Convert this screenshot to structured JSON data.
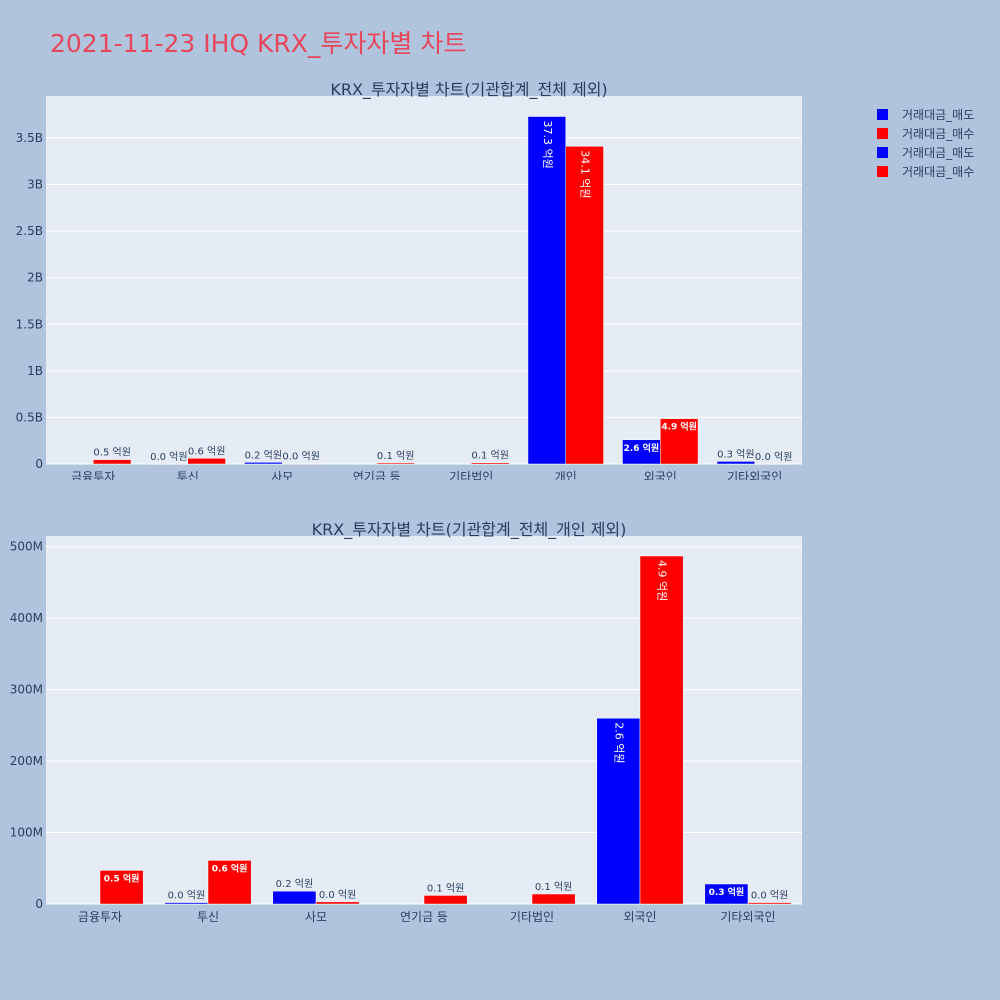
{
  "title": "2021-11-23 IHQ KRX_투자자별 차트",
  "legend": [
    {
      "label": "거래대금_매도",
      "color": "#0000ff"
    },
    {
      "label": "거래대금_매수",
      "color": "#ff0000"
    },
    {
      "label": "거래대금_매도",
      "color": "#0000ff"
    },
    {
      "label": "거래대금_매수",
      "color": "#ff0000"
    }
  ],
  "chart_data": [
    {
      "type": "bar",
      "title": "KRX_투자자별 차트(기관합계_전체 제외)",
      "categories": [
        "금융투자",
        "투신",
        "사모",
        "연기금 등",
        "기타법인",
        "개인",
        "외국인",
        "기타외국인"
      ],
      "ylim": [
        0,
        3950000000
      ],
      "yticks": [
        0,
        500000000,
        1000000000,
        1500000000,
        2000000000,
        2500000000,
        3000000000,
        3500000000
      ],
      "ytick_labels": [
        "0",
        "0.5B",
        "1B",
        "1.5B",
        "2B",
        "2.5B",
        "3B",
        "3.5B"
      ],
      "grid": true,
      "series": [
        {
          "name": "거래대금_매도",
          "color": "#0000ff",
          "values": [
            null,
            2000000,
            18000000,
            null,
            null,
            3730000000,
            260000000,
            28000000
          ],
          "labels": [
            "",
            "0.0 억원",
            "0.2 억원",
            "",
            "",
            "37.3 억원",
            "2.6 억원",
            "0.3 억원"
          ]
        },
        {
          "name": "거래대금_매수",
          "color": "#ff0000",
          "values": [
            47000000,
            61000000,
            3000000,
            12000000,
            14000000,
            3410000000,
            487000000,
            2000000
          ],
          "labels": [
            "0.5 억원",
            "0.6 억원",
            "0.0 억원",
            "0.1 억원",
            "0.1 억원",
            "34.1 억원",
            "4.9 억원",
            "0.0 억원"
          ]
        }
      ]
    },
    {
      "type": "bar",
      "title": "KRX_투자자별 차트(기관합계_전체_개인 제외)",
      "categories": [
        "금융투자",
        "투신",
        "사모",
        "연기금 등",
        "기타법인",
        "외국인",
        "기타외국인"
      ],
      "ylim": [
        0,
        515000000
      ],
      "yticks": [
        0,
        100000000,
        200000000,
        300000000,
        400000000,
        500000000
      ],
      "ytick_labels": [
        "0",
        "100M",
        "200M",
        "300M",
        "400M",
        "500M"
      ],
      "grid": true,
      "series": [
        {
          "name": "거래대금_매도",
          "color": "#0000ff",
          "values": [
            null,
            2000000,
            18000000,
            null,
            null,
            260000000,
            28000000
          ],
          "labels": [
            "",
            "0.0 억원",
            "0.2 억원",
            "",
            "",
            "2.6 억원",
            "0.3 억원"
          ]
        },
        {
          "name": "거래대금_매수",
          "color": "#ff0000",
          "values": [
            47000000,
            61000000,
            3000000,
            12000000,
            14000000,
            487000000,
            2000000
          ],
          "labels": [
            "0.5 억원",
            "0.6 억원",
            "0.0 억원",
            "0.1 억원",
            "0.1 억원",
            "4.9 억원",
            "0.0 억원"
          ]
        }
      ]
    }
  ]
}
